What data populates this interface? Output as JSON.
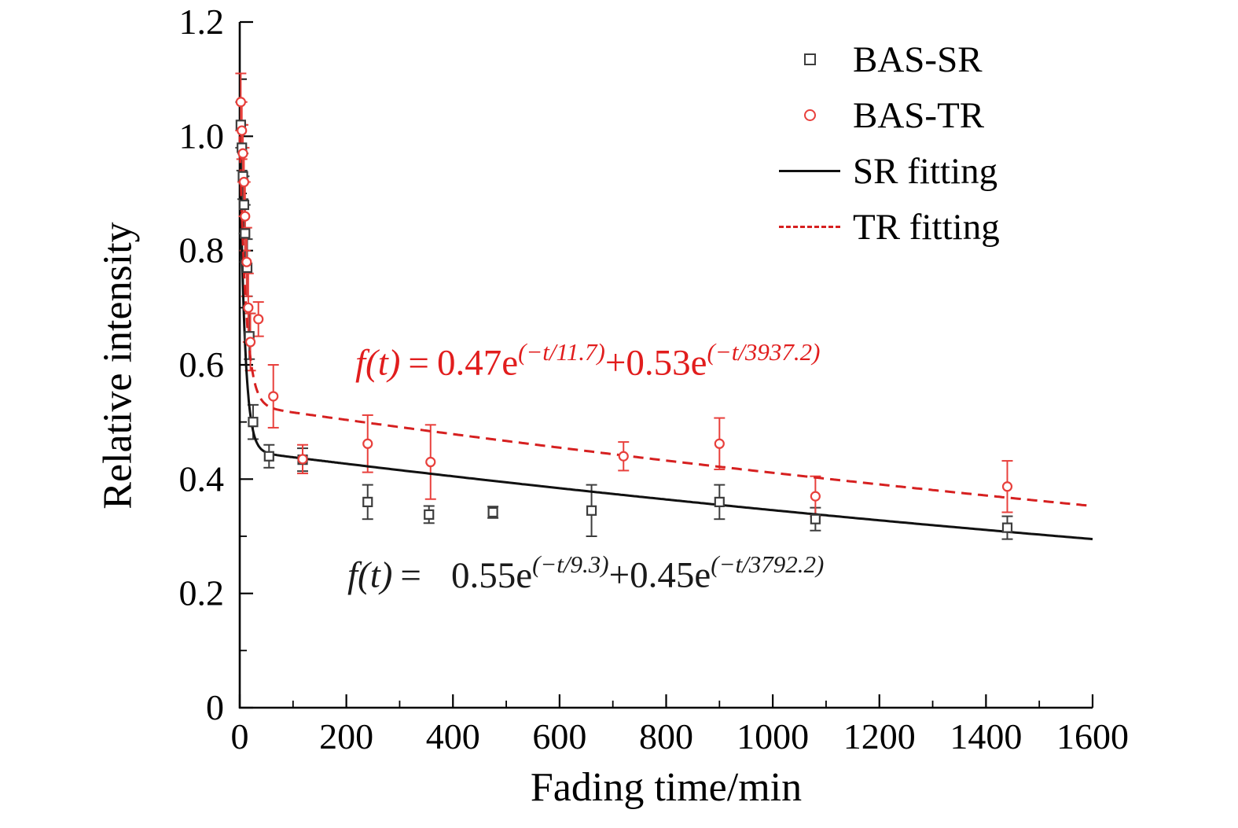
{
  "chart_data": {
    "type": "scatter",
    "title": "",
    "xlabel": "Fading time/min",
    "ylabel": "Relative intensity",
    "xlim": [
      0,
      1600
    ],
    "ylim": [
      0,
      1.2
    ],
    "grid": false,
    "legend_position": "top-right-inside",
    "axis_color": "#000000",
    "x_ticks": [
      {
        "v": 0,
        "label": "0"
      },
      {
        "v": 200,
        "label": "200"
      },
      {
        "v": 400,
        "label": "400"
      },
      {
        "v": 600,
        "label": "600"
      },
      {
        "v": 800,
        "label": "800"
      },
      {
        "v": 1000,
        "label": "1000"
      },
      {
        "v": 1200,
        "label": "1200"
      },
      {
        "v": 1400,
        "label": "1400"
      },
      {
        "v": 1600,
        "label": "1600"
      }
    ],
    "y_ticks": [
      {
        "v": 0,
        "label": "0"
      },
      {
        "v": 0.2,
        "label": "0.2"
      },
      {
        "v": 0.4,
        "label": "0.4"
      },
      {
        "v": 0.6,
        "label": "0.6"
      },
      {
        "v": 0.8,
        "label": "0.8"
      },
      {
        "v": 1.0,
        "label": "1.0"
      },
      {
        "v": 1.2,
        "label": "1.2"
      }
    ],
    "x_minor_step": 100,
    "y_minor_step": 0.1,
    "series": [
      {
        "name": "BAS-SR",
        "marker": "square",
        "color": "#3d3d3d",
        "points": [
          [
            2,
            1.02,
            0.04
          ],
          [
            4,
            0.98,
            0.04
          ],
          [
            6,
            0.93,
            0.04
          ],
          [
            8,
            0.88,
            0.05
          ],
          [
            10,
            0.83,
            0.05
          ],
          [
            14,
            0.77,
            0.05
          ],
          [
            18,
            0.65,
            0.04
          ],
          [
            25,
            0.5,
            0.03
          ],
          [
            55,
            0.44,
            0.02
          ],
          [
            118,
            0.434,
            0.02
          ],
          [
            240,
            0.36,
            0.03
          ],
          [
            355,
            0.338,
            0.015
          ],
          [
            475,
            0.342,
            0.01
          ],
          [
            660,
            0.345,
            0.045
          ],
          [
            900,
            0.36,
            0.03
          ],
          [
            1080,
            0.33,
            0.02
          ],
          [
            1440,
            0.315,
            0.02
          ]
        ]
      },
      {
        "name": "BAS-TR",
        "marker": "circle",
        "color": "#e8403c",
        "points": [
          [
            2,
            1.06,
            0.05
          ],
          [
            4,
            1.01,
            0.05
          ],
          [
            6,
            0.97,
            0.05
          ],
          [
            8,
            0.92,
            0.06
          ],
          [
            10,
            0.86,
            0.06
          ],
          [
            13,
            0.78,
            0.06
          ],
          [
            16,
            0.7,
            0.06
          ],
          [
            20,
            0.64,
            0.05
          ],
          [
            35,
            0.68,
            0.03
          ],
          [
            63,
            0.545,
            0.055
          ],
          [
            118,
            0.435,
            0.025
          ],
          [
            240,
            0.462,
            0.05
          ],
          [
            358,
            0.43,
            0.065
          ],
          [
            720,
            0.44,
            0.025
          ],
          [
            900,
            0.462,
            0.045
          ],
          [
            1080,
            0.37,
            0.035
          ],
          [
            1440,
            0.387,
            0.045
          ]
        ]
      }
    ],
    "fits": [
      {
        "name": "SR fitting",
        "color": "#111111",
        "dash": "",
        "A1": 0.55,
        "tau1": 9.3,
        "A2": 0.45,
        "tau2": 3792.2
      },
      {
        "name": "TR fitting",
        "color": "#d62020",
        "dash": "13 8",
        "A1": 0.47,
        "tau1": 11.7,
        "A2": 0.53,
        "tau2": 3937.2
      }
    ]
  },
  "axis": {
    "xlabel": "Fading time/min",
    "ylabel": "Relative intensity"
  },
  "legend": {
    "items": [
      {
        "label": "BAS-SR"
      },
      {
        "label": "BAS-TR"
      },
      {
        "label": "SR fitting"
      },
      {
        "label": "TR fitting"
      }
    ]
  },
  "equations": {
    "tr": {
      "ft": "f(t)",
      "eq": "=",
      "a": "0.47e",
      "sup_a": "(−t/11.7)",
      "plus": "+",
      "b": "0.53e",
      "sup_b": "(−t/3937.2)",
      "color": "#e11d1d"
    },
    "sr": {
      "ft": "f(t)",
      "eq": "=",
      "a": "0.55e",
      "sup_a": "(−t/9.3)",
      "plus": "+",
      "b": "0.45e",
      "sup_b": "(−t/3792.2)",
      "color": "#1a1a1a"
    }
  }
}
